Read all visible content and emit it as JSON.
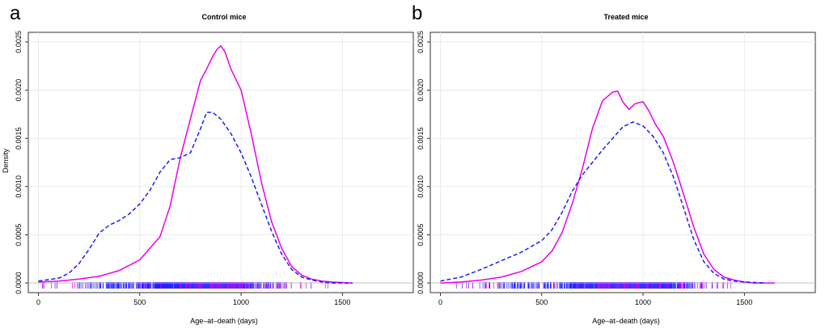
{
  "chart_data": [
    {
      "panel_letter": "a",
      "type": "line",
      "title": "Control mice",
      "xlabel": "Age–at–death (days)",
      "ylabel": "Density",
      "xlim": [
        -50,
        1850
      ],
      "ylim": [
        -0.0001,
        0.0026
      ],
      "xticks": [
        0,
        500,
        1000,
        1500
      ],
      "yticks": [
        0.0,
        0.0005,
        0.001,
        0.0015,
        0.002,
        0.0025
      ],
      "ytick_labels": [
        "0.0000",
        "0.0005",
        "0.0010",
        "0.0015",
        "0.0020",
        "0.0025"
      ],
      "grid": true,
      "series": [
        {
          "style": "solid",
          "color": "#e800e8",
          "x": [
            0,
            100,
            200,
            300,
            400,
            500,
            600,
            650,
            700,
            750,
            800,
            830,
            860,
            880,
            900,
            920,
            950,
            1000,
            1050,
            1100,
            1150,
            1200,
            1250,
            1300,
            1350,
            1400,
            1450,
            1550
          ],
          "y": [
            1e-05,
            2e-05,
            4e-05,
            7e-05,
            0.00013,
            0.00024,
            0.00048,
            0.0008,
            0.0013,
            0.0017,
            0.0021,
            0.00222,
            0.00235,
            0.00242,
            0.00246,
            0.0024,
            0.00222,
            0.002,
            0.00155,
            0.00105,
            0.00064,
            0.00036,
            0.00017,
            8e-05,
            4e-05,
            2e-05,
            1e-05,
            0.0
          ]
        },
        {
          "style": "dashed",
          "color": "#1a1aff",
          "x": [
            0,
            100,
            150,
            200,
            250,
            300,
            350,
            400,
            450,
            500,
            550,
            600,
            650,
            700,
            750,
            800,
            830,
            860,
            900,
            950,
            1000,
            1050,
            1100,
            1150,
            1200,
            1250,
            1300,
            1350,
            1400,
            1450,
            1550
          ],
          "y": [
            2e-05,
            5e-05,
            0.0001,
            0.0002,
            0.00035,
            0.00052,
            0.0006,
            0.00065,
            0.00072,
            0.00082,
            0.00096,
            0.00115,
            0.00128,
            0.0013,
            0.00135,
            0.0016,
            0.00177,
            0.00177,
            0.0017,
            0.00155,
            0.00135,
            0.0011,
            0.00082,
            0.00054,
            0.0003,
            0.00014,
            6e-05,
            3e-05,
            1e-05,
            0.0,
            0.0
          ]
        }
      ]
    },
    {
      "panel_letter": "b",
      "type": "line",
      "title": "Treated mice",
      "xlabel": "Age–at–death (days)",
      "ylabel": "",
      "xlim": [
        -50,
        1850
      ],
      "ylim": [
        -0.0001,
        0.0026
      ],
      "xticks": [
        0,
        500,
        1000,
        1500
      ],
      "yticks": [
        0.0,
        0.0005,
        0.001,
        0.0015,
        0.002,
        0.0025
      ],
      "ytick_labels": [
        "0.0000",
        "0.0005",
        "0.0010",
        "0.0015",
        "0.0020",
        "0.0025"
      ],
      "grid": true,
      "series": [
        {
          "style": "solid",
          "color": "#e800e8",
          "x": [
            0,
            100,
            200,
            300,
            400,
            500,
            550,
            600,
            650,
            700,
            750,
            800,
            850,
            875,
            900,
            930,
            960,
            1000,
            1030,
            1060,
            1100,
            1150,
            1200,
            1250,
            1300,
            1350,
            1400,
            1450,
            1500,
            1550,
            1650
          ],
          "y": [
            0.0,
            1e-05,
            3e-05,
            6e-05,
            0.00012,
            0.00022,
            0.00033,
            0.00052,
            0.00082,
            0.00118,
            0.0016,
            0.00189,
            0.00198,
            0.00199,
            0.00188,
            0.0018,
            0.00186,
            0.00188,
            0.00178,
            0.00165,
            0.00152,
            0.00125,
            0.00092,
            0.00058,
            0.0003,
            0.00014,
            6e-05,
            3e-05,
            1e-05,
            0.0,
            0.0
          ]
        },
        {
          "style": "dashed",
          "color": "#1a1aff",
          "x": [
            0,
            100,
            200,
            300,
            400,
            500,
            550,
            600,
            650,
            700,
            750,
            800,
            850,
            900,
            950,
            1000,
            1050,
            1100,
            1150,
            1200,
            1250,
            1300,
            1350,
            1400,
            1450,
            1500,
            1600
          ],
          "y": [
            2e-05,
            6e-05,
            0.00014,
            0.00023,
            0.00032,
            0.00044,
            0.00055,
            0.00073,
            0.00095,
            0.00112,
            0.00125,
            0.00138,
            0.0015,
            0.00162,
            0.00167,
            0.00163,
            0.00152,
            0.00135,
            0.0011,
            0.00078,
            0.00045,
            0.00022,
            0.0001,
            4e-05,
            2e-05,
            1e-05,
            0.0
          ]
        }
      ]
    }
  ]
}
